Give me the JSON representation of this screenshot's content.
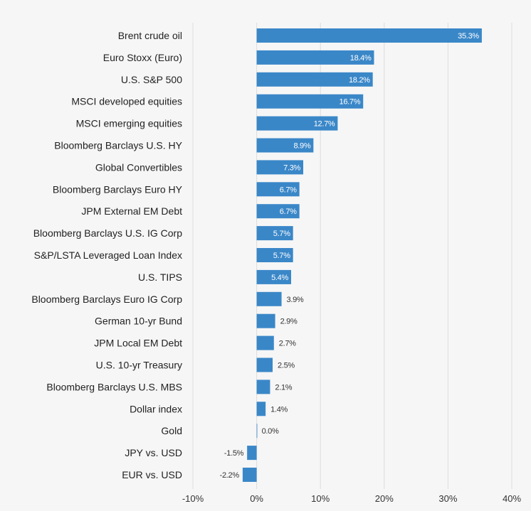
{
  "chart_data": {
    "type": "bar",
    "orientation": "horizontal",
    "categories": [
      "Brent crude oil",
      "Euro Stoxx (Euro)",
      "U.S. S&P 500",
      "MSCI developed equities",
      "MSCI emerging equities",
      "Bloomberg Barclays U.S. HY",
      "Global Convertibles",
      "Bloomberg Barclays Euro HY",
      "JPM External EM Debt",
      "Bloomberg Barclays U.S. IG Corp",
      "S&P/LSTA Leveraged Loan Index",
      "U.S. TIPS",
      "Bloomberg Barclays Euro IG Corp",
      "German 10-yr Bund",
      "JPM Local EM Debt",
      "U.S. 10-yr Treasury",
      "Bloomberg Barclays U.S. MBS",
      "Dollar index",
      "Gold",
      "JPY vs. USD",
      "EUR vs. USD"
    ],
    "values": [
      35.3,
      18.4,
      18.2,
      16.7,
      12.7,
      8.9,
      7.3,
      6.7,
      6.7,
      5.7,
      5.7,
      5.4,
      3.9,
      2.9,
      2.7,
      2.5,
      2.1,
      1.4,
      0.0,
      -1.5,
      -2.2
    ],
    "value_labels": [
      "35.3%",
      "18.4%",
      "18.2%",
      "16.7%",
      "12.7%",
      "8.9%",
      "7.3%",
      "6.7%",
      "6.7%",
      "5.7%",
      "5.7%",
      "5.4%",
      "3.9%",
      "2.9%",
      "2.7%",
      "2.5%",
      "2.1%",
      "1.4%",
      "0.0%",
      "-1.5%",
      "-2.2%"
    ],
    "xlim": [
      -10,
      40
    ],
    "xticks": [
      -10,
      0,
      10,
      20,
      30,
      40
    ],
    "xtick_labels": [
      "-10%",
      "0%",
      "10%",
      "20%",
      "30%",
      "40%"
    ],
    "title": "",
    "xlabel": "",
    "ylabel": "",
    "grid": "vertical",
    "legend": "none"
  },
  "colors": {
    "bar": "#3a87c8",
    "grid": "#dddddd",
    "background": "#f6f6f6",
    "label_inside": "#ffffff",
    "label_outside": "#333333"
  }
}
